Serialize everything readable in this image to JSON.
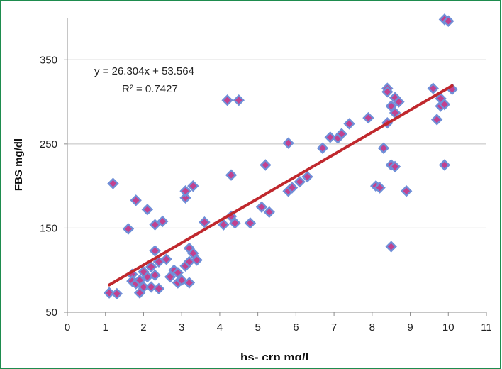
{
  "chart_data": {
    "type": "scatter",
    "xlabel": "hs- crp mg/L",
    "ylabel": "FBS mg/dl",
    "xlim": [
      0,
      11
    ],
    "ylim": [
      50,
      400
    ],
    "x_ticks": [
      0,
      1,
      2,
      3,
      4,
      5,
      6,
      7,
      8,
      9,
      10,
      11
    ],
    "y_ticks": [
      50,
      150,
      250,
      350
    ],
    "grid": "horizontal",
    "legend": "none",
    "colors": {
      "marker_fill": "#c2418f",
      "marker_edge": "#6f8fd8",
      "trendline": "#c0282d",
      "gridline": "#bfbfbf",
      "frame": "#1e8c4e"
    },
    "trendline": {
      "slope": 26.304,
      "intercept": 53.564,
      "equation_label": "y = 26.304x + 53.564",
      "r2_label": "R² = 0.7427",
      "x_range": [
        1.1,
        10.1
      ]
    },
    "points": [
      [
        1.1,
        73
      ],
      [
        1.3,
        72
      ],
      [
        1.2,
        203
      ],
      [
        1.6,
        149
      ],
      [
        1.8,
        183
      ],
      [
        1.7,
        95
      ],
      [
        1.7,
        87
      ],
      [
        1.8,
        84
      ],
      [
        1.9,
        88
      ],
      [
        2.0,
        80
      ],
      [
        1.9,
        73
      ],
      [
        2.1,
        92
      ],
      [
        2.0,
        98
      ],
      [
        2.1,
        172
      ],
      [
        2.2,
        104
      ],
      [
        2.2,
        80
      ],
      [
        2.3,
        94
      ],
      [
        2.3,
        123
      ],
      [
        2.3,
        154
      ],
      [
        2.4,
        110
      ],
      [
        2.4,
        78
      ],
      [
        2.5,
        158
      ],
      [
        2.6,
        113
      ],
      [
        2.7,
        92
      ],
      [
        2.8,
        100
      ],
      [
        2.9,
        97
      ],
      [
        2.9,
        85
      ],
      [
        3.0,
        88
      ],
      [
        3.1,
        105
      ],
      [
        3.1,
        186
      ],
      [
        3.1,
        194
      ],
      [
        3.2,
        110
      ],
      [
        3.2,
        85
      ],
      [
        3.2,
        126
      ],
      [
        3.3,
        120
      ],
      [
        3.3,
        200
      ],
      [
        3.4,
        112
      ],
      [
        3.6,
        157
      ],
      [
        4.1,
        154
      ],
      [
        4.2,
        302
      ],
      [
        4.3,
        164
      ],
      [
        4.3,
        213
      ],
      [
        4.4,
        156
      ],
      [
        4.5,
        302
      ],
      [
        4.8,
        156
      ],
      [
        5.1,
        175
      ],
      [
        5.2,
        225
      ],
      [
        5.3,
        169
      ],
      [
        5.8,
        251
      ],
      [
        5.8,
        194
      ],
      [
        5.9,
        198
      ],
      [
        6.1,
        205
      ],
      [
        6.3,
        211
      ],
      [
        6.7,
        245
      ],
      [
        6.9,
        258
      ],
      [
        7.1,
        257
      ],
      [
        7.2,
        262
      ],
      [
        7.4,
        274
      ],
      [
        7.9,
        281
      ],
      [
        8.1,
        200
      ],
      [
        8.2,
        198
      ],
      [
        8.3,
        245
      ],
      [
        8.4,
        275
      ],
      [
        8.4,
        316
      ],
      [
        8.4,
        312
      ],
      [
        8.5,
        128
      ],
      [
        8.5,
        225
      ],
      [
        8.5,
        295
      ],
      [
        8.6,
        223
      ],
      [
        8.6,
        305
      ],
      [
        8.6,
        287
      ],
      [
        8.7,
        300
      ],
      [
        8.9,
        194
      ],
      [
        9.6,
        316
      ],
      [
        9.7,
        279
      ],
      [
        9.8,
        295
      ],
      [
        9.8,
        304
      ],
      [
        9.9,
        225
      ],
      [
        9.9,
        297
      ],
      [
        9.9,
        398
      ],
      [
        10.0,
        396
      ],
      [
        10.1,
        315
      ]
    ]
  }
}
